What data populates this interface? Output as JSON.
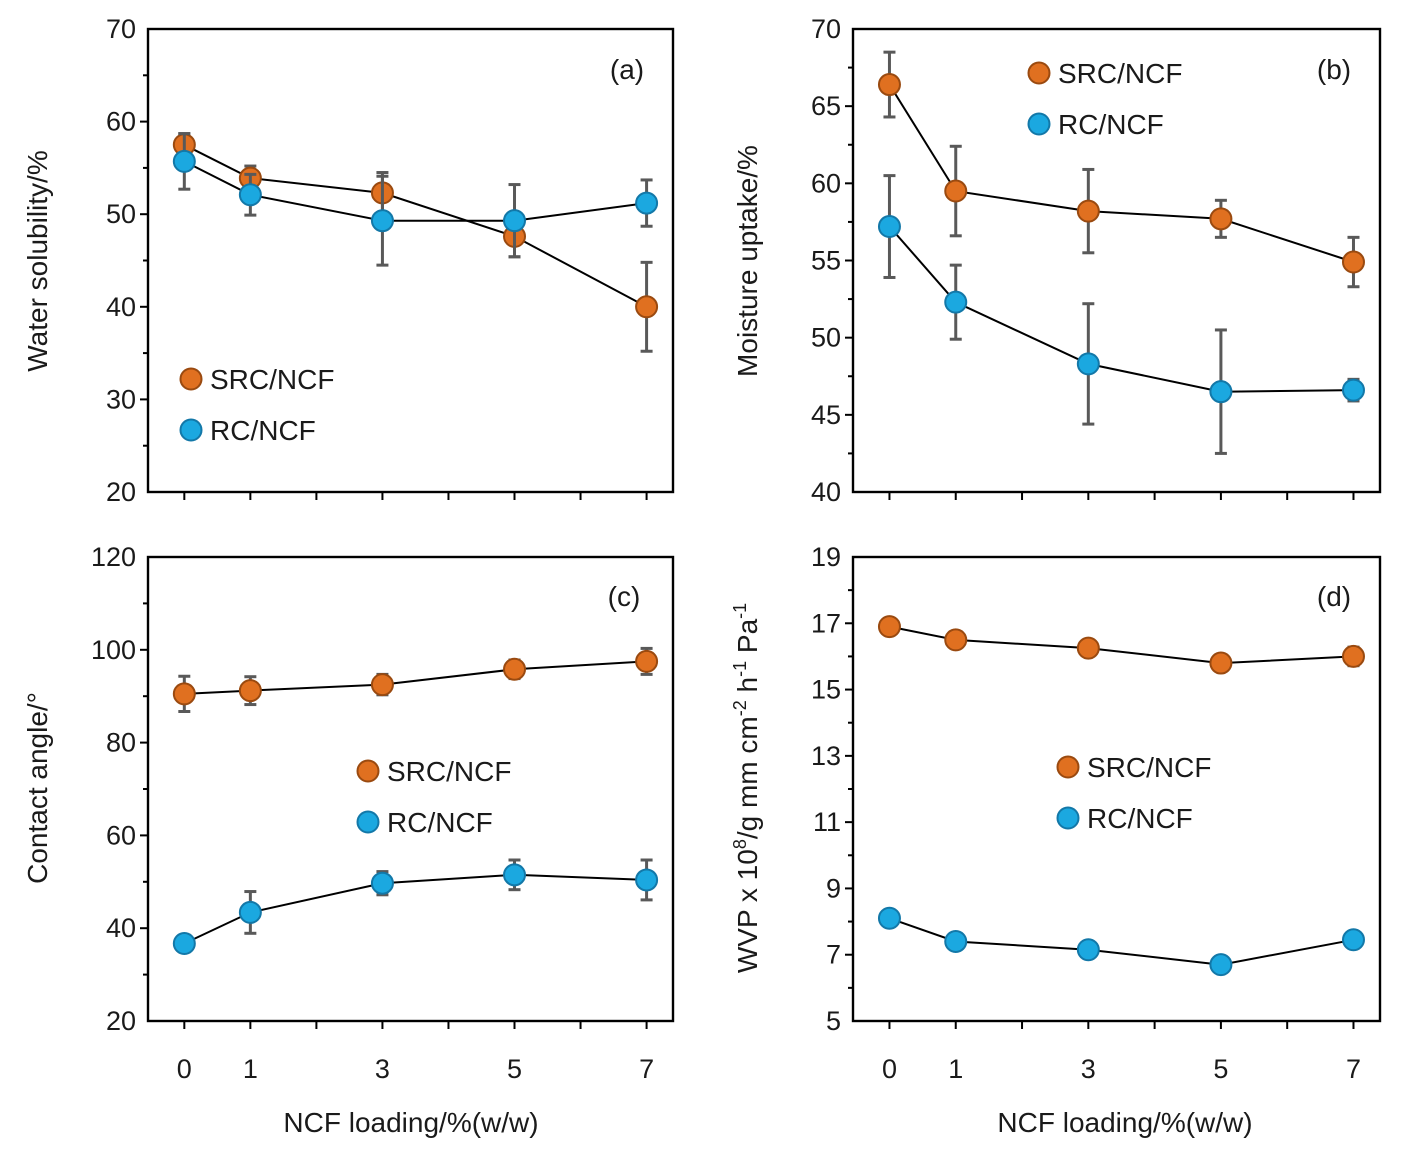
{
  "xlabel": "NCF loading/%(w/w)",
  "colors": {
    "SRC/NCF": "#E07020",
    "RC/NCF": "#1BA8E0",
    "SRC/NCF_edge": "#9A4A10",
    "RC/NCF_edge": "#1378A8",
    "errorbar": "#595959"
  },
  "chart_data": [
    {
      "type": "line",
      "panel": "(a)",
      "ylabel": "Water solubility/%",
      "ylim": [
        20,
        70
      ],
      "yticks": [
        "20",
        "30",
        "40",
        "50",
        "60",
        "70"
      ],
      "x": [
        0,
        1,
        3,
        5,
        7
      ],
      "xticks": [
        "0",
        "1",
        "3",
        "5",
        "7"
      ],
      "legend": "left-middle",
      "series": [
        {
          "name": "SRC/NCF",
          "values": [
            57.5,
            53.9,
            52.3,
            47.6,
            40.0
          ],
          "errors": [
            1.2,
            1.3,
            2.2,
            2.2,
            4.8
          ]
        },
        {
          "name": "RC/NCF",
          "values": [
            55.7,
            52.1,
            49.3,
            49.3,
            51.2
          ],
          "errors": [
            3.0,
            2.2,
            4.8,
            3.9,
            2.5
          ]
        }
      ]
    },
    {
      "type": "line",
      "panel": "(b)",
      "ylabel": "Moisture uptake/%",
      "ylim": [
        40,
        70
      ],
      "yticks": [
        "40",
        "45",
        "50",
        "55",
        "60",
        "65",
        "70"
      ],
      "x": [
        0,
        1,
        3,
        5,
        7
      ],
      "xticks": [
        "0",
        "1",
        "3",
        "5",
        "7"
      ],
      "legend": "top-center",
      "series": [
        {
          "name": "SRC/NCF",
          "values": [
            66.4,
            59.5,
            58.2,
            57.7,
            54.9
          ],
          "errors": [
            2.1,
            2.9,
            2.7,
            1.2,
            1.6
          ]
        },
        {
          "name": "RC/NCF",
          "values": [
            57.2,
            52.3,
            48.3,
            46.5,
            46.6
          ],
          "errors": [
            3.3,
            2.4,
            3.9,
            4.0,
            0.7
          ]
        }
      ]
    },
    {
      "type": "line",
      "panel": "(c)",
      "ylabel": "Contact angle/°",
      "ylim": [
        20,
        120
      ],
      "yticks": [
        "20",
        "40",
        "60",
        "80",
        "100",
        "120"
      ],
      "x": [
        0,
        1,
        3,
        5,
        7
      ],
      "xticks": [
        "0",
        "1",
        "3",
        "5",
        "7"
      ],
      "legend": "center",
      "series": [
        {
          "name": "SRC/NCF",
          "values": [
            90.5,
            91.2,
            92.5,
            95.8,
            97.5
          ],
          "errors": [
            3.8,
            3.0,
            2.2,
            2.0,
            2.8
          ]
        },
        {
          "name": "RC/NCF",
          "values": [
            36.7,
            43.4,
            49.7,
            51.5,
            50.4
          ],
          "errors": [
            1.8,
            4.5,
            2.5,
            3.2,
            4.3
          ]
        }
      ]
    },
    {
      "type": "line",
      "panel": "(d)",
      "ylabel": "WVP x 10",
      "ylabel_parts": {
        "a": "WVP x 10",
        "b": "8",
        "c": "/g mm cm",
        "d": "-2",
        "e": " h",
        "f": "-1",
        "g": " Pa",
        "h": "-1"
      },
      "ylim": [
        5,
        19
      ],
      "yticks": [
        "5",
        "7",
        "9",
        "11",
        "13",
        "15",
        "17",
        "19"
      ],
      "x": [
        0,
        1,
        3,
        5,
        7
      ],
      "xticks": [
        "0",
        "1",
        "3",
        "5",
        "7"
      ],
      "legend": "center",
      "series": [
        {
          "name": "SRC/NCF",
          "values": [
            16.9,
            16.5,
            16.25,
            15.8,
            16.0
          ],
          "errors": [
            0,
            0,
            0,
            0.15,
            0.28
          ]
        },
        {
          "name": "RC/NCF",
          "values": [
            8.1,
            7.4,
            7.15,
            6.7,
            7.45
          ],
          "errors": [
            0,
            0,
            0,
            0,
            0
          ]
        }
      ]
    }
  ]
}
